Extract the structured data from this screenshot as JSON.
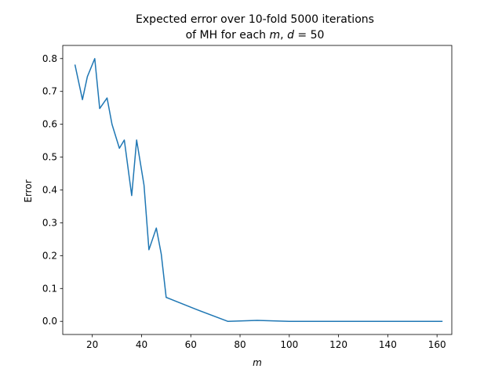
{
  "chart_data": {
    "type": "line",
    "title_line1": "Expected error over 10-fold 5000 iterations",
    "title_line2_prefix": "of MH for each ",
    "title_line2_m": "m",
    "title_line2_mid": ", ",
    "title_line2_d": "d",
    "title_line2_suffix": " = 50",
    "xlabel": "m",
    "ylabel": "Error",
    "xlim": [
      8,
      166
    ],
    "ylim": [
      -0.04,
      0.84
    ],
    "xticks": [
      20,
      40,
      60,
      80,
      100,
      120,
      140,
      160
    ],
    "xtick_labels": [
      "20",
      "40",
      "60",
      "80",
      "100",
      "120",
      "140",
      "160"
    ],
    "yticks": [
      0.0,
      0.1,
      0.2,
      0.3,
      0.4,
      0.5,
      0.6,
      0.7,
      0.8
    ],
    "ytick_labels": [
      "0.0",
      "0.1",
      "0.2",
      "0.3",
      "0.4",
      "0.5",
      "0.6",
      "0.7",
      "0.8"
    ],
    "grid": false,
    "legend": "none",
    "series": [
      {
        "color": "#1f77b4",
        "x": [
          13,
          16,
          18,
          21,
          23,
          26,
          28,
          31,
          33,
          36,
          38,
          41,
          43,
          46,
          48,
          50,
          62,
          75,
          87,
          100,
          112,
          125,
          137,
          150,
          162
        ],
        "y": [
          0.78,
          0.675,
          0.745,
          0.8,
          0.648,
          0.68,
          0.6,
          0.527,
          0.552,
          0.383,
          0.552,
          0.415,
          0.218,
          0.284,
          0.205,
          0.073,
          0.037,
          0.0,
          0.003,
          0.0,
          0.0,
          0.0,
          0.0,
          0.0,
          0.0
        ]
      }
    ]
  }
}
